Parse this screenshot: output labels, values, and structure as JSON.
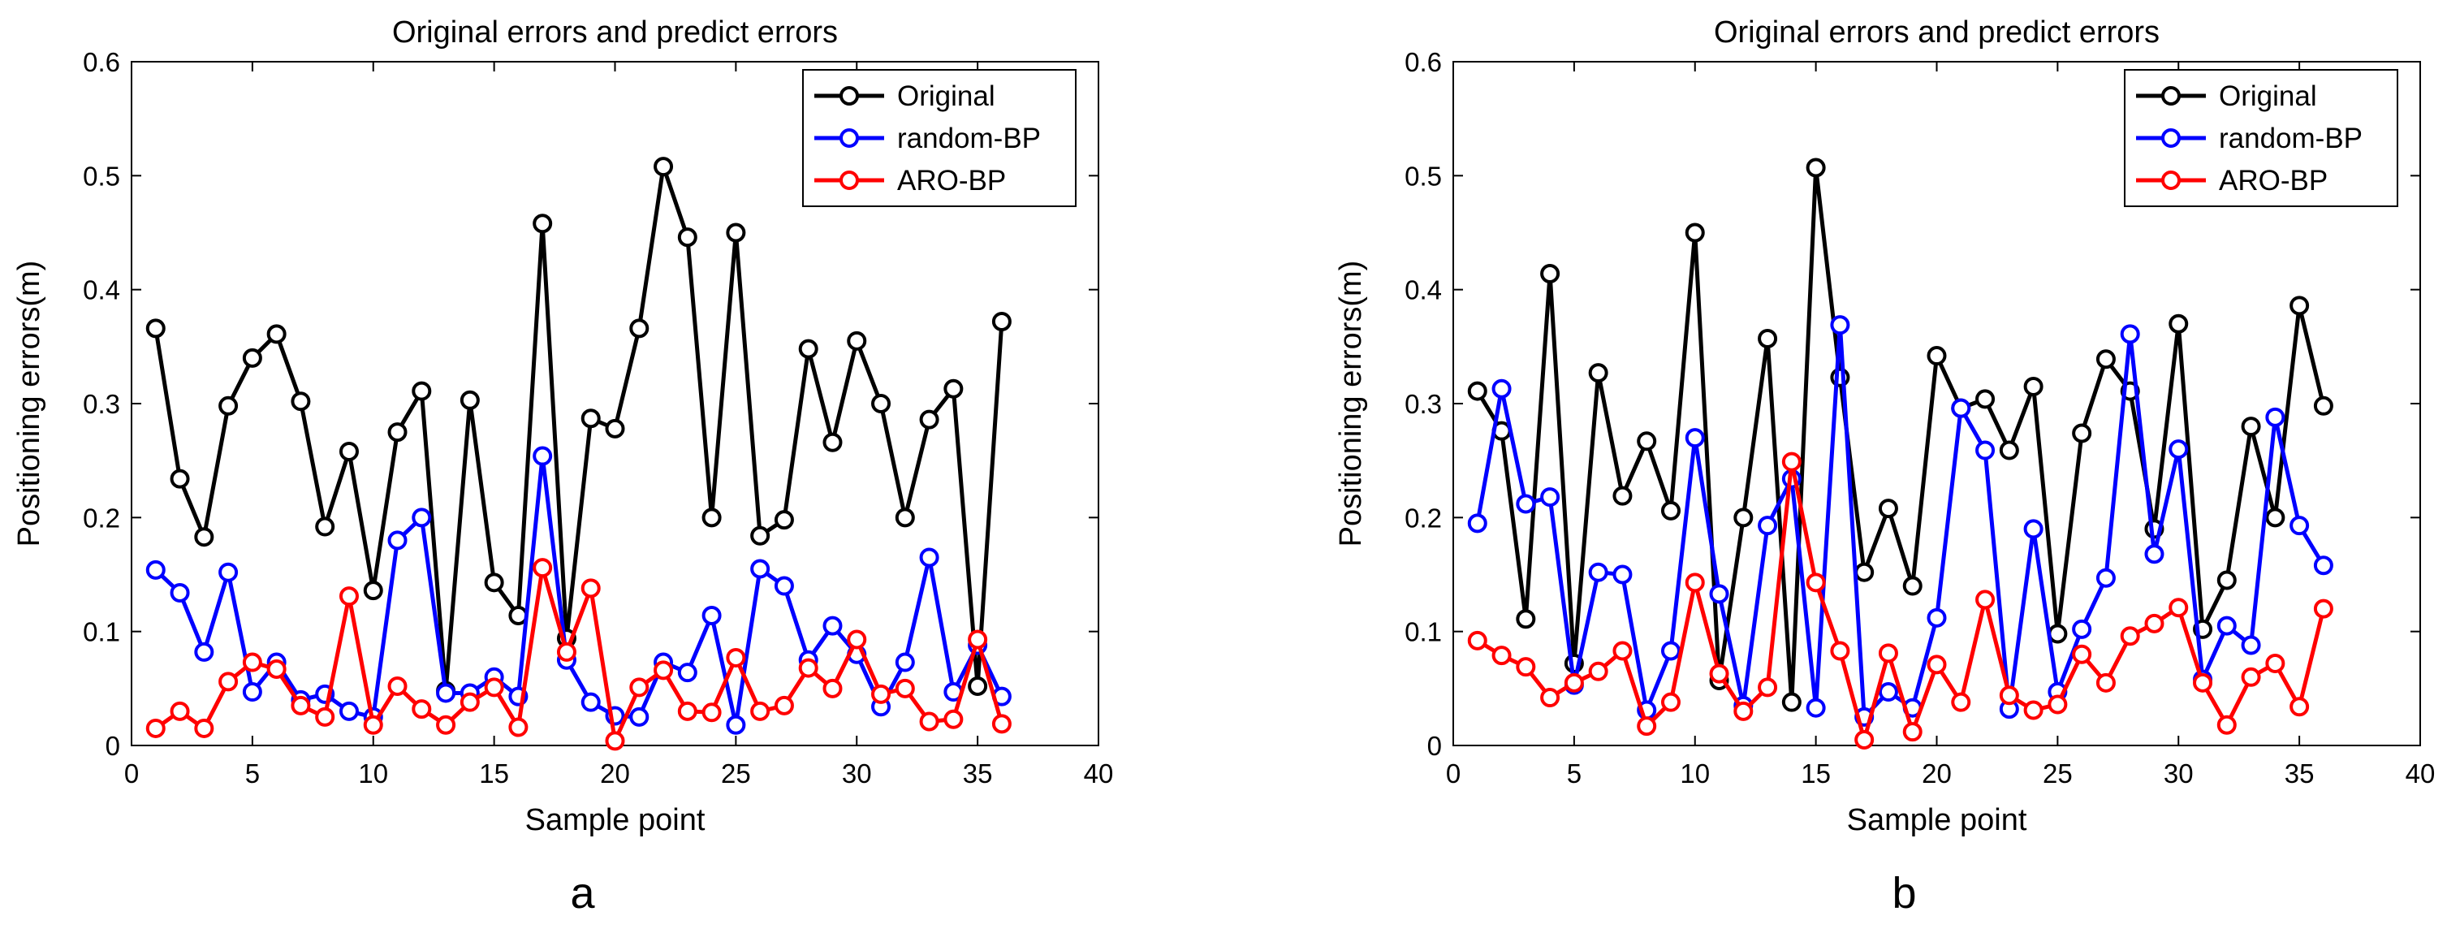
{
  "chart_data": [
    {
      "type": "line",
      "panel_label": "a",
      "title": "Original errors and predict errors",
      "xlabel": "Sample point",
      "ylabel": "Positioning errors(m)",
      "xlim": [
        0,
        40
      ],
      "ylim": [
        0,
        0.6
      ],
      "xticks": [
        0,
        5,
        10,
        15,
        20,
        25,
        30,
        35,
        40
      ],
      "yticks": [
        0,
        0.1,
        0.2,
        0.3,
        0.4,
        0.5,
        0.6
      ],
      "xtick_labels": [
        "0",
        "5",
        "10",
        "15",
        "20",
        "25",
        "30",
        "35",
        "40"
      ],
      "ytick_labels": [
        "0",
        "0.1",
        "0.2",
        "0.3",
        "0.4",
        "0.5",
        "0.6"
      ],
      "legend_position": "top-right",
      "grid": false,
      "x": [
        1,
        2,
        3,
        4,
        5,
        6,
        7,
        8,
        9,
        10,
        11,
        12,
        13,
        14,
        15,
        16,
        17,
        18,
        19,
        20,
        21,
        22,
        23,
        24,
        25,
        26,
        27,
        28,
        29,
        30,
        31,
        32,
        33,
        34,
        35,
        36
      ],
      "series": [
        {
          "name": "Original",
          "color": "#000000",
          "values": [
            0.366,
            0.234,
            0.183,
            0.298,
            0.34,
            0.361,
            0.302,
            0.192,
            0.258,
            0.136,
            0.275,
            0.311,
            0.048,
            0.303,
            0.143,
            0.114,
            0.458,
            0.094,
            0.287,
            0.278,
            0.366,
            0.508,
            0.446,
            0.2,
            0.45,
            0.184,
            0.198,
            0.348,
            0.266,
            0.355,
            0.3,
            0.2,
            0.286,
            0.313,
            0.052,
            0.372
          ]
        },
        {
          "name": "random-BP",
          "color": "#0000ff",
          "values": [
            0.154,
            0.134,
            0.082,
            0.152,
            0.047,
            0.073,
            0.04,
            0.045,
            0.03,
            0.025,
            0.18,
            0.2,
            0.046,
            0.046,
            0.06,
            0.043,
            0.254,
            0.075,
            0.038,
            0.026,
            0.025,
            0.073,
            0.064,
            0.114,
            0.018,
            0.155,
            0.14,
            0.075,
            0.105,
            0.08,
            0.034,
            0.073,
            0.165,
            0.047,
            0.088,
            0.043
          ]
        },
        {
          "name": "ARO-BP",
          "color": "#ff0000",
          "values": [
            0.015,
            0.03,
            0.015,
            0.056,
            0.073,
            0.067,
            0.035,
            0.025,
            0.131,
            0.018,
            0.052,
            0.032,
            0.018,
            0.038,
            0.051,
            0.016,
            0.156,
            0.082,
            0.138,
            0.004,
            0.051,
            0.066,
            0.03,
            0.029,
            0.077,
            0.03,
            0.035,
            0.068,
            0.05,
            0.093,
            0.045,
            0.05,
            0.021,
            0.023,
            0.093,
            0.019
          ]
        }
      ]
    },
    {
      "type": "line",
      "panel_label": "b",
      "title": "Original errors and predict errors",
      "xlabel": "Sample point",
      "ylabel": "Positioning errors(m)",
      "xlim": [
        0,
        40
      ],
      "ylim": [
        0,
        0.6
      ],
      "xticks": [
        0,
        5,
        10,
        15,
        20,
        25,
        30,
        35,
        40
      ],
      "yticks": [
        0,
        0.1,
        0.2,
        0.3,
        0.4,
        0.5,
        0.6
      ],
      "xtick_labels": [
        "0",
        "5",
        "10",
        "15",
        "20",
        "25",
        "30",
        "35",
        "40"
      ],
      "ytick_labels": [
        "0",
        "0.1",
        "0.2",
        "0.3",
        "0.4",
        "0.5",
        "0.6"
      ],
      "legend_position": "top-right",
      "grid": false,
      "x": [
        1,
        2,
        3,
        4,
        5,
        6,
        7,
        8,
        9,
        10,
        11,
        12,
        13,
        14,
        15,
        16,
        17,
        18,
        19,
        20,
        21,
        22,
        23,
        24,
        25,
        26,
        27,
        28,
        29,
        30,
        31,
        32,
        33,
        34,
        35,
        36
      ],
      "series": [
        {
          "name": "Original",
          "color": "#000000",
          "values": [
            0.311,
            0.276,
            0.111,
            0.414,
            0.072,
            0.327,
            0.219,
            0.267,
            0.206,
            0.45,
            0.057,
            0.2,
            0.357,
            0.038,
            0.507,
            0.323,
            0.152,
            0.208,
            0.14,
            0.342,
            0.296,
            0.304,
            0.259,
            0.315,
            0.098,
            0.274,
            0.339,
            0.311,
            0.19,
            0.37,
            0.102,
            0.145,
            0.28,
            0.2,
            0.386,
            0.298
          ]
        },
        {
          "name": "random-BP",
          "color": "#0000ff",
          "values": [
            0.195,
            0.313,
            0.212,
            0.218,
            0.053,
            0.152,
            0.15,
            0.031,
            0.083,
            0.27,
            0.133,
            0.035,
            0.193,
            0.234,
            0.033,
            0.369,
            0.025,
            0.047,
            0.033,
            0.112,
            0.296,
            0.259,
            0.032,
            0.19,
            0.047,
            0.102,
            0.147,
            0.361,
            0.168,
            0.26,
            0.058,
            0.105,
            0.088,
            0.288,
            0.193,
            0.158
          ]
        },
        {
          "name": "ARO-BP",
          "color": "#ff0000",
          "values": [
            0.092,
            0.079,
            0.069,
            0.042,
            0.055,
            0.065,
            0.083,
            0.017,
            0.038,
            0.143,
            0.063,
            0.03,
            0.051,
            0.249,
            0.143,
            0.083,
            0.005,
            0.081,
            0.012,
            0.071,
            0.038,
            0.128,
            0.044,
            0.031,
            0.036,
            0.08,
            0.055,
            0.096,
            0.107,
            0.121,
            0.055,
            0.018,
            0.06,
            0.072,
            0.034,
            0.12
          ]
        }
      ]
    }
  ]
}
